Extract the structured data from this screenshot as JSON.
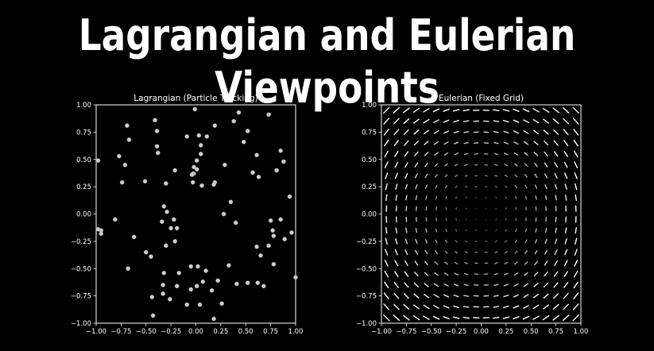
{
  "title": "Lagrangian and Eulerian Viewpoints",
  "colors": {
    "background": "#000000",
    "foreground": "#ffffff",
    "point": "#cfcfcf"
  },
  "chart_data": [
    {
      "type": "scatter",
      "title": "Lagrangian (Particle Tracking)",
      "xlim": [
        -1.0,
        1.0
      ],
      "ylim": [
        -1.0,
        1.0
      ],
      "xticks": [
        "−1.00",
        "−0.75",
        "−0.50",
        "−0.25",
        "0.00",
        "0.25",
        "0.50",
        "0.75",
        "1.00"
      ],
      "yticks": [
        "1.00",
        "0.75",
        "0.50",
        "0.25",
        "0.00",
        "−0.25",
        "−0.50",
        "−0.75",
        "−1.00"
      ],
      "grid": false,
      "points": [
        [
          -0.01,
          0.96
        ],
        [
          0.43,
          0.93
        ],
        [
          0.73,
          0.91
        ],
        [
          -0.41,
          0.86
        ],
        [
          0.38,
          0.85
        ],
        [
          0.19,
          0.81
        ],
        [
          -0.69,
          0.81
        ],
        [
          -0.39,
          0.76
        ],
        [
          0.52,
          0.76
        ],
        [
          -0.09,
          0.71
        ],
        [
          0.03,
          0.72
        ],
        [
          0.11,
          0.71
        ],
        [
          -0.67,
          0.68
        ],
        [
          -0.39,
          0.62
        ],
        [
          0.48,
          0.66
        ],
        [
          0.05,
          0.63
        ],
        [
          -0.38,
          0.56
        ],
        [
          0.85,
          0.58
        ],
        [
          0.05,
          0.55
        ],
        [
          -0.77,
          0.53
        ],
        [
          0.61,
          0.54
        ],
        [
          -0.98,
          0.49
        ],
        [
          -0.71,
          0.45
        ],
        [
          0.01,
          0.49
        ],
        [
          -0.02,
          0.43
        ],
        [
          0.29,
          0.45
        ],
        [
          0.88,
          0.48
        ],
        [
          0.81,
          0.4
        ],
        [
          -0.21,
          0.4
        ],
        [
          0.01,
          0.41
        ],
        [
          0.57,
          0.38
        ],
        [
          -0.02,
          0.37
        ],
        [
          0.63,
          0.34
        ],
        [
          -0.03,
          0.37
        ],
        [
          -0.74,
          0.29
        ],
        [
          -0.51,
          0.3
        ],
        [
          -0.3,
          0.28
        ],
        [
          0.19,
          0.29
        ],
        [
          -0.04,
          0.36
        ],
        [
          0.06,
          0.26
        ],
        [
          0.18,
          0.27
        ],
        [
          -0.03,
          0.29
        ],
        [
          0.35,
          0.11
        ],
        [
          0.94,
          0.16
        ],
        [
          -0.32,
          0.07
        ],
        [
          0.28,
          0.0
        ],
        [
          -0.29,
          0.02
        ],
        [
          -0.81,
          -0.05
        ],
        [
          -0.22,
          -0.05
        ],
        [
          0.75,
          -0.06
        ],
        [
          0.85,
          -0.05
        ],
        [
          -0.34,
          -0.07
        ],
        [
          -0.98,
          -0.14
        ],
        [
          -0.95,
          -0.15
        ],
        [
          0.4,
          -0.08
        ],
        [
          -0.25,
          -0.13
        ],
        [
          0.77,
          -0.15
        ],
        [
          -0.19,
          -0.13
        ],
        [
          -0.95,
          -0.18
        ],
        [
          0.96,
          -0.17
        ],
        [
          0.78,
          -0.2
        ],
        [
          -0.62,
          -0.21
        ],
        [
          0.89,
          -0.23
        ],
        [
          -0.21,
          -0.25
        ],
        [
          0.73,
          -0.29
        ],
        [
          -0.68,
          -0.5
        ],
        [
          -0.3,
          -0.29
        ],
        [
          0.61,
          -0.3
        ],
        [
          -0.5,
          -0.35
        ],
        [
          0.65,
          -0.38
        ],
        [
          -0.45,
          -0.39
        ],
        [
          0.78,
          -0.46
        ],
        [
          -0.05,
          -0.48
        ],
        [
          0.02,
          -0.48
        ],
        [
          0.33,
          -0.47
        ],
        [
          -0.32,
          -0.54
        ],
        [
          0.1,
          -0.52
        ],
        [
          -0.17,
          -0.54
        ],
        [
          1.0,
          -0.58
        ],
        [
          0.07,
          -0.62
        ],
        [
          0.22,
          -0.61
        ],
        [
          -0.33,
          -0.65
        ],
        [
          0.01,
          -0.66
        ],
        [
          0.62,
          -0.63
        ],
        [
          -0.19,
          -0.66
        ],
        [
          0.52,
          -0.63
        ],
        [
          -0.05,
          -0.69
        ],
        [
          0.16,
          -0.7
        ],
        [
          0.41,
          -0.64
        ],
        [
          0.68,
          -0.66
        ],
        [
          -0.44,
          -0.76
        ],
        [
          -0.26,
          -0.78
        ],
        [
          -0.09,
          -0.83
        ],
        [
          0.04,
          -0.83
        ],
        [
          0.26,
          -0.82
        ],
        [
          -0.43,
          -0.93
        ],
        [
          0.18,
          -0.96
        ],
        [
          -0.33,
          -0.73
        ]
      ]
    },
    {
      "type": "quiver",
      "title": "Eulerian (Fixed Grid)",
      "xlim": [
        -1.0,
        1.0
      ],
      "ylim": [
        -1.0,
        1.0
      ],
      "xticks": [
        "−1.00",
        "−0.75",
        "−0.50",
        "−0.25",
        "0.00",
        "0.25",
        "0.50",
        "0.75",
        "1.00"
      ],
      "yticks": [
        "1.00",
        "0.75",
        "0.50",
        "0.25",
        "0.00",
        "−0.25",
        "−0.50",
        "−0.75",
        "−1.00"
      ],
      "grid": false,
      "field": "counter-clockwise rotation about origin",
      "grid_n": 20
    }
  ]
}
